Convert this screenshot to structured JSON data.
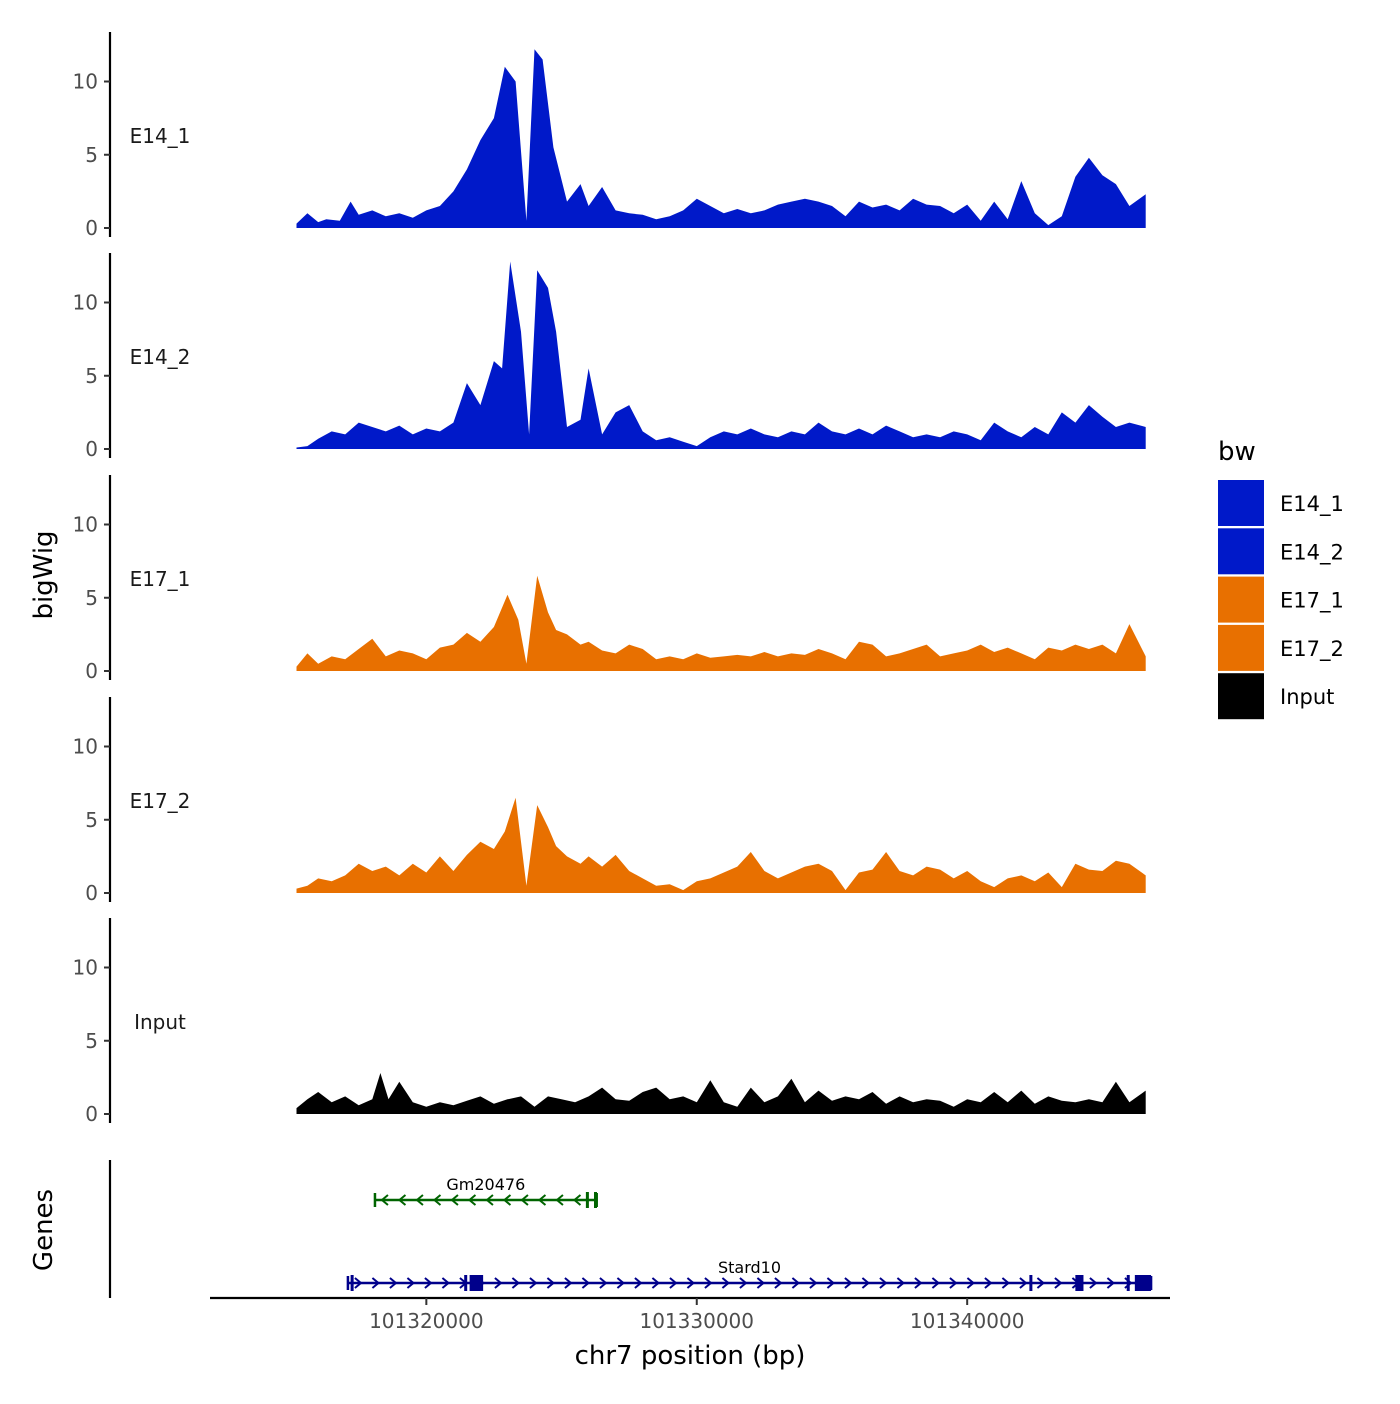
{
  "chart_data": {
    "type": "area",
    "ylabel": "bigWig",
    "xlabel": "chr7 position (bp)",
    "genes_label": "Genes",
    "xlim": [
      101312000,
      101347500
    ],
    "ylim": [
      0,
      13
    ],
    "x_ticks": [
      {
        "value": 101320000,
        "label": "101320000"
      },
      {
        "value": 101330000,
        "label": "101330000"
      },
      {
        "value": 101340000,
        "label": "101340000"
      }
    ],
    "y_ticks": [
      {
        "value": 0,
        "label": "0"
      },
      {
        "value": 5,
        "label": "5"
      },
      {
        "value": 10,
        "label": "10"
      }
    ],
    "tracks": [
      {
        "name": "E14_1",
        "color": "#0019c9",
        "x": [
          101315200,
          101315600,
          101316000,
          101316300,
          101316800,
          101317200,
          101317500,
          101318000,
          101318500,
          101319000,
          101319500,
          101320000,
          101320500,
          101321000,
          101321500,
          101322000,
          101322500,
          101322900,
          101323300,
          101323700,
          101324000,
          101324300,
          101324700,
          101325200,
          101325700,
          101326000,
          101326500,
          101327000,
          101327500,
          101328000,
          101328500,
          101329000,
          101329500,
          101330000,
          101330500,
          101331000,
          101331500,
          101332000,
          101332500,
          101333000,
          101333500,
          101334000,
          101334500,
          101335000,
          101335500,
          101336000,
          101336500,
          101337000,
          101337500,
          101338000,
          101338500,
          101339000,
          101339500,
          101340000,
          101340500,
          101341000,
          101341500,
          101342000,
          101342500,
          101343000,
          101343500,
          101344000,
          101344500,
          101345000,
          101345500,
          101346000,
          101346600
        ],
        "values": [
          0.3,
          1.0,
          0.4,
          0.6,
          0.5,
          1.8,
          0.9,
          1.2,
          0.8,
          1.0,
          0.7,
          1.2,
          1.5,
          2.5,
          4.0,
          6.0,
          7.5,
          11.0,
          10.0,
          0.5,
          12.2,
          11.5,
          5.5,
          1.8,
          3.0,
          1.5,
          2.8,
          1.2,
          1.0,
          0.9,
          0.6,
          0.8,
          1.2,
          2.0,
          1.5,
          1.0,
          1.3,
          1.0,
          1.2,
          1.6,
          1.8,
          2.0,
          1.8,
          1.5,
          0.8,
          1.8,
          1.4,
          1.6,
          1.2,
          2.0,
          1.6,
          1.5,
          1.0,
          1.6,
          0.5,
          1.8,
          0.6,
          3.2,
          1.0,
          0.2,
          0.8,
          3.5,
          4.8,
          3.6,
          3.0,
          1.5,
          2.3
        ]
      },
      {
        "name": "E14_2",
        "color": "#0019c9",
        "x": [
          101315200,
          101315600,
          101316000,
          101316500,
          101317000,
          101317500,
          101318000,
          101318500,
          101319000,
          101319500,
          101320000,
          101320500,
          101321000,
          101321500,
          101322000,
          101322500,
          101322800,
          101323100,
          101323500,
          101323800,
          101324100,
          101324500,
          101324800,
          101325200,
          101325700,
          101326000,
          101326500,
          101327000,
          101327500,
          101328000,
          101328500,
          101329000,
          101329500,
          101330000,
          101330500,
          101331000,
          101331500,
          101332000,
          101332500,
          101333000,
          101333500,
          101334000,
          101334500,
          101335000,
          101335500,
          101336000,
          101336500,
          101337000,
          101337500,
          101338000,
          101338500,
          101339000,
          101339500,
          101340000,
          101340500,
          101341000,
          101341500,
          101342000,
          101342500,
          101343000,
          101343500,
          101344000,
          101344500,
          101345000,
          101345500,
          101346000,
          101346600
        ],
        "values": [
          0.1,
          0.2,
          0.7,
          1.2,
          1.0,
          1.8,
          1.5,
          1.2,
          1.6,
          1.0,
          1.4,
          1.2,
          1.8,
          4.5,
          3.0,
          6.0,
          5.5,
          12.8,
          8.0,
          1.0,
          12.2,
          11.0,
          8.0,
          1.5,
          2.0,
          5.5,
          1.0,
          2.5,
          3.0,
          1.2,
          0.6,
          0.8,
          0.5,
          0.2,
          0.8,
          1.2,
          1.0,
          1.4,
          1.0,
          0.8,
          1.2,
          1.0,
          1.8,
          1.2,
          1.0,
          1.4,
          1.0,
          1.6,
          1.2,
          0.8,
          1.0,
          0.8,
          1.2,
          1.0,
          0.6,
          1.8,
          1.2,
          0.8,
          1.5,
          1.0,
          2.5,
          1.8,
          3.0,
          2.2,
          1.5,
          1.8,
          1.5
        ]
      },
      {
        "name": "E17_1",
        "color": "#e87000",
        "x": [
          101315200,
          101315600,
          101316000,
          101316500,
          101317000,
          101317500,
          101318000,
          101318500,
          101319000,
          101319500,
          101320000,
          101320500,
          101321000,
          101321500,
          101322000,
          101322500,
          101323000,
          101323400,
          101323700,
          101324100,
          101324500,
          101324800,
          101325200,
          101325700,
          101326000,
          101326500,
          101327000,
          101327500,
          101328000,
          101328500,
          101329000,
          101329500,
          101330000,
          101330500,
          101331000,
          101331500,
          101332000,
          101332500,
          101333000,
          101333500,
          101334000,
          101334500,
          101335000,
          101335500,
          101336000,
          101336500,
          101337000,
          101337500,
          101338000,
          101338500,
          101339000,
          101339500,
          101340000,
          101340500,
          101341000,
          101341500,
          101342000,
          101342500,
          101343000,
          101343500,
          101344000,
          101344500,
          101345000,
          101345500,
          101346000,
          101346600
        ],
        "values": [
          0.3,
          1.2,
          0.5,
          1.0,
          0.8,
          1.5,
          2.2,
          1.0,
          1.4,
          1.2,
          0.8,
          1.6,
          1.8,
          2.6,
          2.0,
          3.0,
          5.2,
          3.5,
          0.5,
          6.5,
          4.0,
          2.8,
          2.5,
          1.8,
          2.0,
          1.4,
          1.2,
          1.8,
          1.5,
          0.8,
          1.0,
          0.8,
          1.2,
          0.9,
          1.0,
          1.1,
          1.0,
          1.3,
          1.0,
          1.2,
          1.1,
          1.5,
          1.2,
          0.8,
          2.0,
          1.8,
          1.0,
          1.2,
          1.5,
          1.8,
          1.0,
          1.2,
          1.4,
          1.8,
          1.3,
          1.6,
          1.2,
          0.8,
          1.6,
          1.4,
          1.8,
          1.5,
          1.8,
          1.2,
          3.2,
          1.0
        ]
      },
      {
        "name": "E17_2",
        "color": "#e87000",
        "x": [
          101315200,
          101315600,
          101316000,
          101316500,
          101317000,
          101317500,
          101318000,
          101318500,
          101319000,
          101319500,
          101320000,
          101320500,
          101321000,
          101321500,
          101322000,
          101322500,
          101322900,
          101323300,
          101323700,
          101324100,
          101324500,
          101324800,
          101325200,
          101325700,
          101326000,
          101326500,
          101327000,
          101327500,
          101328000,
          101328500,
          101329000,
          101329500,
          101330000,
          101330500,
          101331000,
          101331500,
          101332000,
          101332500,
          101333000,
          101333500,
          101334000,
          101334500,
          101335000,
          101335500,
          101336000,
          101336500,
          101337000,
          101337500,
          101338000,
          101338500,
          101339000,
          101339500,
          101340000,
          101340500,
          101341000,
          101341500,
          101342000,
          101342500,
          101343000,
          101343500,
          101344000,
          101344500,
          101345000,
          101345500,
          101346000,
          101346600
        ],
        "values": [
          0.3,
          0.5,
          1.0,
          0.8,
          1.2,
          2.0,
          1.5,
          1.8,
          1.2,
          2.0,
          1.4,
          2.5,
          1.5,
          2.6,
          3.5,
          3.0,
          4.2,
          6.5,
          0.5,
          6.0,
          4.5,
          3.2,
          2.5,
          2.0,
          2.5,
          1.8,
          2.6,
          1.5,
          1.0,
          0.5,
          0.6,
          0.2,
          0.8,
          1.0,
          1.4,
          1.8,
          2.8,
          1.5,
          1.0,
          1.4,
          1.8,
          2.0,
          1.5,
          0.2,
          1.4,
          1.6,
          2.8,
          1.5,
          1.2,
          1.8,
          1.6,
          1.0,
          1.5,
          0.8,
          0.4,
          1.0,
          1.2,
          0.8,
          1.4,
          0.4,
          2.0,
          1.6,
          1.5,
          2.2,
          2.0,
          1.2
        ]
      },
      {
        "name": "Input",
        "color": "#000000",
        "x": [
          101315200,
          101315600,
          101316000,
          101316500,
          101317000,
          101317500,
          101318000,
          101318300,
          101318600,
          101319000,
          101319500,
          101320000,
          101320500,
          101321000,
          101321500,
          101322000,
          101322500,
          101323000,
          101323500,
          101324000,
          101324500,
          101325000,
          101325500,
          101326000,
          101326500,
          101327000,
          101327500,
          101328000,
          101328500,
          101329000,
          101329500,
          101330000,
          101330500,
          101331000,
          101331500,
          101332000,
          101332500,
          101333000,
          101333500,
          101334000,
          101334500,
          101335000,
          101335500,
          101336000,
          101336500,
          101337000,
          101337500,
          101338000,
          101338500,
          101339000,
          101339500,
          101340000,
          101340500,
          101341000,
          101341500,
          101342000,
          101342500,
          101343000,
          101343500,
          101344000,
          101344500,
          101345000,
          101345500,
          101346000,
          101346600
        ],
        "values": [
          0.4,
          1.0,
          1.5,
          0.8,
          1.2,
          0.6,
          1.0,
          2.8,
          1.0,
          2.2,
          0.8,
          0.5,
          0.8,
          0.6,
          0.9,
          1.2,
          0.7,
          1.0,
          1.2,
          0.5,
          1.2,
          1.0,
          0.8,
          1.2,
          1.8,
          1.0,
          0.9,
          1.5,
          1.8,
          1.0,
          1.2,
          0.8,
          2.3,
          0.8,
          0.5,
          1.8,
          0.8,
          1.2,
          2.4,
          0.8,
          1.6,
          0.9,
          1.2,
          1.0,
          1.5,
          0.7,
          1.2,
          0.8,
          1.0,
          0.9,
          0.5,
          1.0,
          0.8,
          1.5,
          0.8,
          1.6,
          0.7,
          1.2,
          0.9,
          0.8,
          1.0,
          0.8,
          2.2,
          0.8,
          1.6
        ]
      }
    ],
    "genes": [
      {
        "name": "Gm20476",
        "color": "#006400",
        "strand": "-",
        "start": 101318100,
        "end": 101326300,
        "exons": [
          [
            101325900,
            101326000
          ],
          [
            101326200,
            101326300
          ]
        ]
      },
      {
        "name": "Stard10",
        "color": "#00008b",
        "strand": "+",
        "start": 101317100,
        "end": 101346800,
        "exons": [
          [
            101317200,
            101317300
          ],
          [
            101321400,
            101321500
          ],
          [
            101321600,
            101322100
          ],
          [
            101342300,
            101342400
          ],
          [
            101344000,
            101344300
          ],
          [
            101345900,
            101346000
          ],
          [
            101346200,
            101346800
          ]
        ]
      }
    ],
    "legend": {
      "title": "bw",
      "position": "right",
      "items": [
        {
          "label": "E14_1",
          "color": "#0019c9"
        },
        {
          "label": "E14_2",
          "color": "#0019c9"
        },
        {
          "label": "E17_1",
          "color": "#e87000"
        },
        {
          "label": "E17_2",
          "color": "#e87000"
        },
        {
          "label": "Input",
          "color": "#000000"
        }
      ]
    }
  }
}
